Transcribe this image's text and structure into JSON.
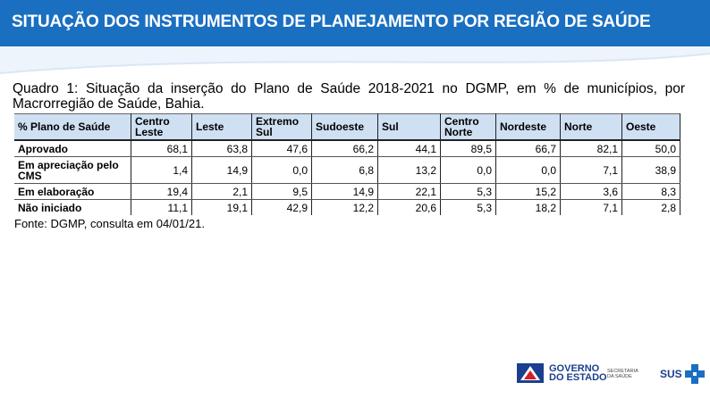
{
  "slide": {
    "title": "SITUAÇÃO DOS INSTRUMENTOS DE PLANEJAMENTO POR REGIÃO DE SAÚDE"
  },
  "quadro": {
    "caption": "Quadro 1: Situação da inserção do Plano de Saúde 2018-2021 no DGMP, em % de municípios, por Macrorregião de Saúde, Bahia.",
    "columns": [
      "% Plano de Saúde",
      "Centro Leste",
      "Leste",
      "Extremo Sul",
      "Sudoeste",
      "Sul",
      "Centro Norte",
      "Nordeste",
      "Norte",
      "Oeste"
    ],
    "rows": [
      {
        "label": "Aprovado",
        "values": [
          "68,1",
          "63,8",
          "47,6",
          "66,2",
          "44,1",
          "89,5",
          "66,7",
          "82,1",
          "50,0"
        ]
      },
      {
        "label": "Em apreciação pelo CMS",
        "values": [
          "1,4",
          "14,9",
          "0,0",
          "6,8",
          "13,2",
          "0,0",
          "0,0",
          "7,1",
          "38,9"
        ]
      },
      {
        "label": "Em elaboração",
        "values": [
          "19,4",
          "2,1",
          "9,5",
          "14,9",
          "22,1",
          "5,3",
          "15,2",
          "3,6",
          "8,3"
        ]
      },
      {
        "label": "Não iniciado",
        "values": [
          "11,1",
          "19,1",
          "42,9",
          "12,2",
          "20,6",
          "5,3",
          "18,2",
          "7,1",
          "2,8"
        ]
      }
    ],
    "source": "Fonte: DGMP, consulta em 04/01/21."
  },
  "footer": {
    "gov_line1": "GOVERNO",
    "gov_line2": "DO ESTADO",
    "secretaria_line1": "SECRETARIA",
    "secretaria_line2": "DA SAÚDE",
    "sus_label": "SUS"
  },
  "colors": {
    "header_bg": "#1a6fc0",
    "table_header_bg": "#cfe0f3",
    "logo_blue": "#1b3f8f"
  }
}
